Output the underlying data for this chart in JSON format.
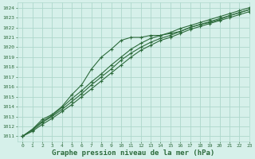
{
  "title": "Graphe pression niveau de la mer (hPa)",
  "xlabel_fontsize": 6.5,
  "bg_color": "#d6f0ea",
  "grid_color": "#aed8cc",
  "line_color": "#2d6b3c",
  "marker_color": "#2d6b3c",
  "xlim": [
    -0.5,
    23
  ],
  "ylim": [
    1010.5,
    1024.5
  ],
  "yticks": [
    1011,
    1012,
    1013,
    1014,
    1015,
    1016,
    1017,
    1018,
    1019,
    1020,
    1021,
    1022,
    1023,
    1024
  ],
  "xticks": [
    0,
    1,
    2,
    3,
    4,
    5,
    6,
    7,
    8,
    9,
    10,
    11,
    12,
    13,
    14,
    15,
    16,
    17,
    18,
    19,
    20,
    21,
    22,
    23
  ],
  "series": [
    [
      1011.0,
      1011.7,
      1012.7,
      1013.2,
      1014.0,
      1015.2,
      1016.2,
      1017.8,
      1019.0,
      1019.8,
      1020.7,
      1021.0,
      1021.0,
      1021.2,
      1021.2,
      1021.4,
      1021.6,
      1022.0,
      1022.3,
      1022.5,
      1022.8,
      1023.2,
      1023.5,
      1023.8
    ],
    [
      1011.0,
      1011.7,
      1012.5,
      1013.1,
      1013.9,
      1014.8,
      1015.6,
      1016.5,
      1017.3,
      1018.2,
      1019.0,
      1019.8,
      1020.4,
      1020.9,
      1021.2,
      1021.5,
      1021.9,
      1022.2,
      1022.5,
      1022.8,
      1023.1,
      1023.4,
      1023.7,
      1024.0
    ],
    [
      1011.0,
      1011.6,
      1012.4,
      1013.0,
      1013.7,
      1014.5,
      1015.3,
      1016.2,
      1017.0,
      1017.8,
      1018.7,
      1019.4,
      1020.0,
      1020.5,
      1020.9,
      1021.2,
      1021.6,
      1022.0,
      1022.3,
      1022.6,
      1022.9,
      1023.2,
      1023.5,
      1023.8
    ],
    [
      1011.0,
      1011.5,
      1012.2,
      1012.8,
      1013.5,
      1014.2,
      1015.0,
      1015.8,
      1016.6,
      1017.4,
      1018.2,
      1019.0,
      1019.7,
      1020.2,
      1020.7,
      1021.0,
      1021.4,
      1021.8,
      1022.1,
      1022.4,
      1022.7,
      1023.0,
      1023.3,
      1023.6
    ]
  ]
}
